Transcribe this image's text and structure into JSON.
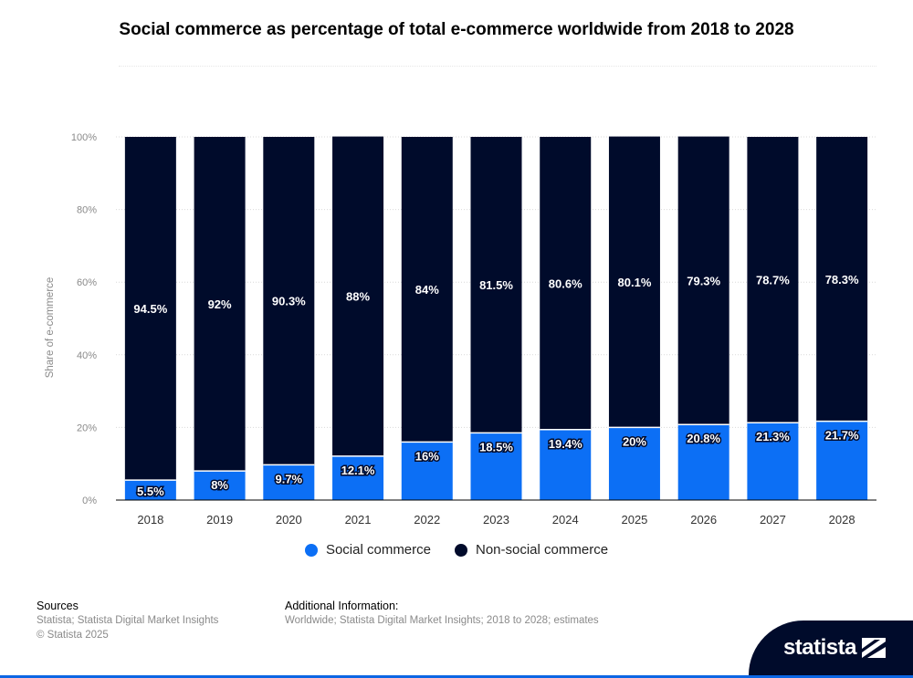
{
  "header": {
    "title": "Social commerce as percentage of total e-commerce worldwide from 2018 to 2028"
  },
  "chart_data": {
    "type": "bar",
    "stacked": true,
    "title": "Social commerce as percentage of total e-commerce worldwide from 2018 to 2028",
    "xlabel": "",
    "ylabel": "Share of e-commerce",
    "ylim": [
      0,
      100
    ],
    "y_ticks": [
      "0%",
      "20%",
      "40%",
      "60%",
      "80%",
      "100%"
    ],
    "y_tick_values": [
      0,
      20,
      40,
      60,
      80,
      100
    ],
    "grid": true,
    "categories": [
      "2018",
      "2019",
      "2020",
      "2021",
      "2022",
      "2023",
      "2024",
      "2025",
      "2026",
      "2027",
      "2028"
    ],
    "series": [
      {
        "name": "Social commerce",
        "color": "#0c6ff5",
        "values": [
          5.5,
          8,
          9.7,
          12.1,
          16,
          18.5,
          19.4,
          20,
          20.8,
          21.3,
          21.7
        ],
        "labels": [
          "5.5%",
          "8%",
          "9.7%",
          "12.1%",
          "16%",
          "18.5%",
          "19.4%",
          "20%",
          "20.8%",
          "21.3%",
          "21.7%"
        ]
      },
      {
        "name": "Non-social commerce",
        "color": "#000b2b",
        "values": [
          94.5,
          92,
          90.3,
          88,
          84,
          81.5,
          80.6,
          80.1,
          79.3,
          78.7,
          78.3
        ],
        "labels": [
          "94.5%",
          "92%",
          "90.3%",
          "88%",
          "84%",
          "81.5%",
          "80.6%",
          "80.1%",
          "79.3%",
          "78.7%",
          "78.3%"
        ]
      }
    ],
    "legend_position": "bottom"
  },
  "legend": {
    "items": [
      {
        "label": "Social commerce",
        "color": "#0c6ff5"
      },
      {
        "label": "Non-social commerce",
        "color": "#000b2b"
      }
    ]
  },
  "footer": {
    "sources_heading": "Sources",
    "sources_line1": "Statista; Statista Digital Market Insights",
    "sources_line2": "© Statista 2025",
    "info_heading": "Additional Information:",
    "info_line1": "Worldwide; Statista Digital Market Insights; 2018 to 2028; estimates"
  },
  "brand": {
    "logo_text": "statista"
  }
}
